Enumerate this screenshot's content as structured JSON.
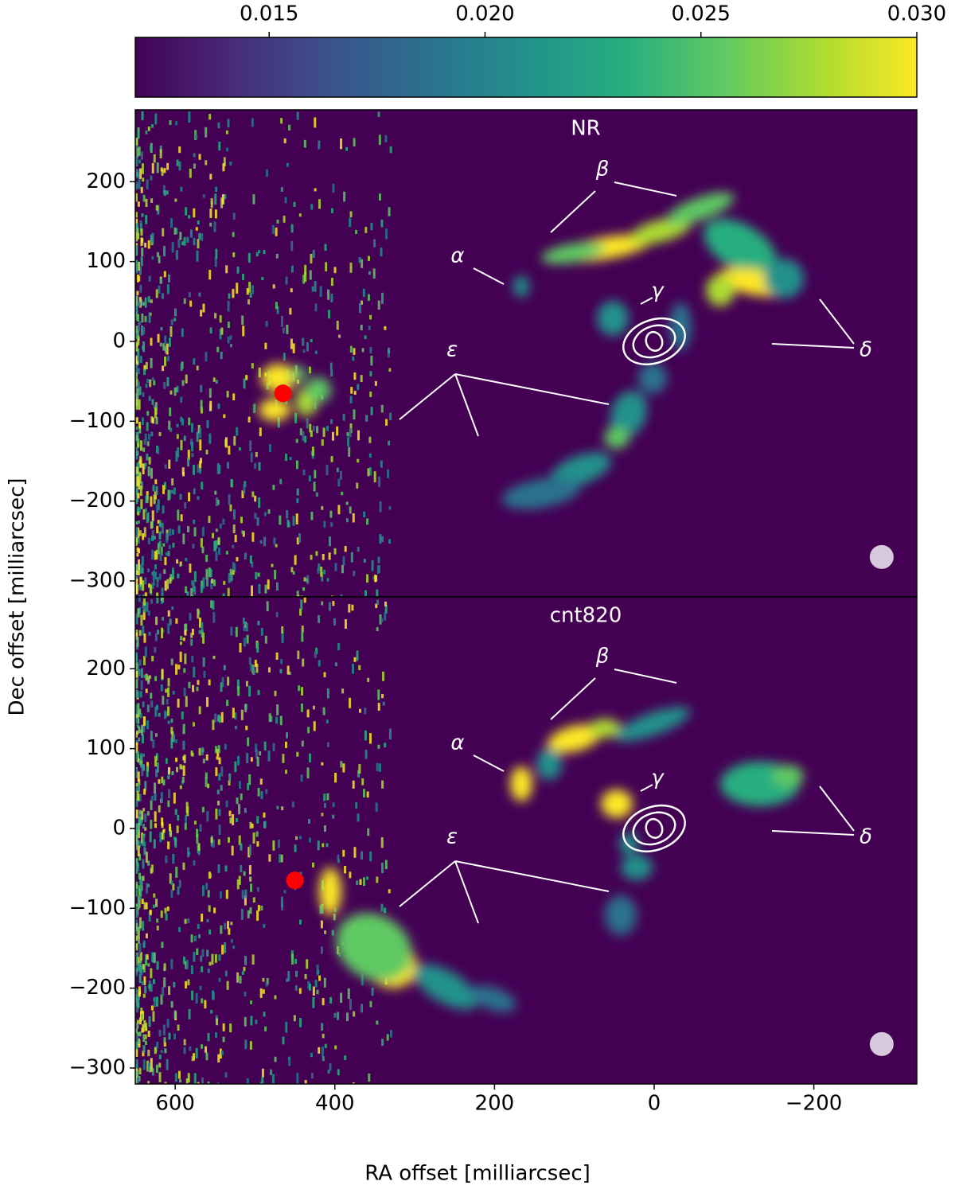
{
  "chart_data": {
    "type": "image",
    "xlabel": "RA offset [milliarcsec]",
    "ylabel": "Dec offset [milliarcsec]",
    "xlim": [
      650,
      -329
    ],
    "xticks": [
      600,
      400,
      200,
      0,
      {
        "value": -200,
        "label": "−200"
      }
    ],
    "colorbar": {
      "clim": [
        0.0119,
        0.03
      ],
      "ticks": [
        {
          "value": 0.015,
          "label": "0.015"
        },
        {
          "value": 0.02,
          "label": "0.020"
        },
        {
          "value": 0.025,
          "label": "0.025"
        },
        {
          "value": 0.03,
          "label": "0.030"
        }
      ]
    },
    "panels": [
      {
        "title": "NR",
        "ylim": [
          -320,
          290
        ],
        "yticks": [
          200,
          100,
          0,
          {
            "value": -100,
            "label": "−100"
          },
          {
            "value": -200,
            "label": "−200"
          },
          {
            "value": -300,
            "label": "−300"
          }
        ],
        "marker": {
          "x": 465,
          "y": -65,
          "color": "#ff0000"
        },
        "annotations": [
          "α",
          "β",
          "γ",
          "δ",
          "ε"
        ]
      },
      {
        "title": "cnt820",
        "ylim": [
          -320,
          290
        ],
        "yticks": [
          200,
          100,
          0,
          {
            "value": -100,
            "label": "−100"
          },
          {
            "value": -200,
            "label": "−200"
          },
          {
            "value": -300,
            "label": "−300"
          }
        ],
        "marker": {
          "x": 450,
          "y": -65,
          "color": "#ff0000"
        },
        "annotations": [
          "α",
          "β",
          "γ",
          "δ",
          "ε"
        ]
      }
    ]
  }
}
